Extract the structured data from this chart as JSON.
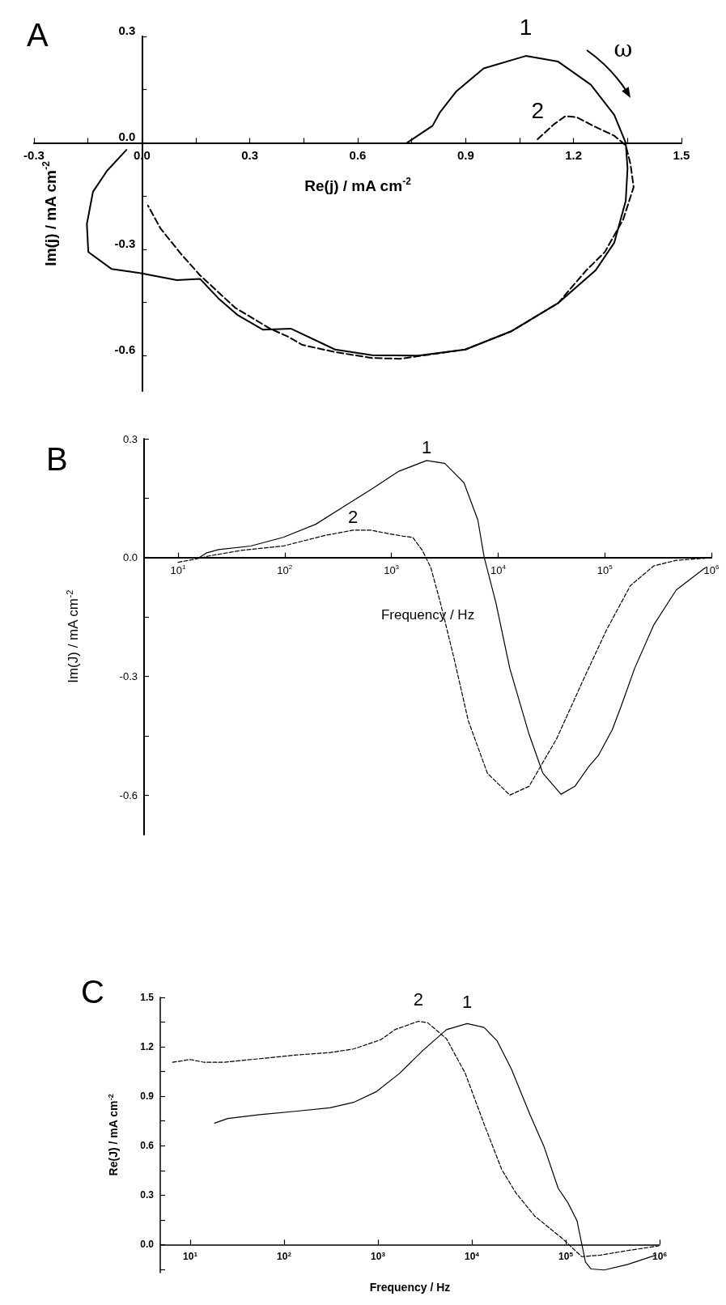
{
  "chart_data": [
    {
      "type": "line",
      "title": "A",
      "xlabel": "Re(j) / mA cm$^{-2}$",
      "ylabel": "Im(j) / mA cm$^{-2}$",
      "xlim": [
        -0.3,
        1.5
      ],
      "ylim": [
        -0.7,
        0.3
      ],
      "xticks": [
        -0.3,
        {
          "value": -0.15,
          "label": null
        },
        {
          "value": 0,
          "label": "0.0"
        },
        {
          "value": 0.15,
          "label": null
        },
        0.3,
        {
          "value": 0.45,
          "label": null
        },
        0.6,
        {
          "value": 0.75,
          "label": null
        },
        0.9,
        {
          "value": 1.05,
          "label": null
        },
        1.2,
        {
          "value": 1.35,
          "label": null
        },
        1.5
      ],
      "yticks": [
        0.3,
        {
          "value": 0.15,
          "label": null
        },
        {
          "value": 0,
          "label": "0.0"
        },
        {
          "value": -0.15,
          "label": null
        },
        -0.3,
        {
          "value": -0.45,
          "label": null
        },
        -0.6
      ],
      "annotations": [
        "ω"
      ],
      "series": [
        {
          "name": "1",
          "color": "#000000",
          "line_style": "solid",
          "x": [
            0.737,
            0.808,
            0.828,
            0.873,
            0.95,
            1.067,
            1.157,
            1.248,
            1.313,
            1.345,
            1.35,
            1.345,
            1.313,
            1.261,
            1.157,
            1.028,
            0.899,
            0.769,
            0.64,
            0.537,
            0.414,
            0.336,
            0.265,
            0.213,
            0.162,
            0.097,
            -0.006,
            -0.084,
            -0.149,
            -0.153,
            -0.136,
            -0.097,
            -0.043
          ],
          "values": [
            0,
            0.048,
            0.085,
            0.144,
            0.21,
            0.245,
            0.229,
            0.164,
            0.079,
            0,
            -0.072,
            -0.164,
            -0.282,
            -0.36,
            -0.452,
            -0.531,
            -0.583,
            -0.6,
            -0.599,
            -0.583,
            -0.524,
            -0.527,
            -0.485,
            -0.439,
            -0.384,
            -0.387,
            -0.367,
            -0.356,
            -0.308,
            -0.229,
            -0.138,
            -0.079,
            -0.02
          ]
        },
        {
          "name": "2",
          "color": "#000000",
          "line_style": "dashed",
          "x": [
            1.1,
            1.145,
            1.177,
            1.209,
            1.254,
            1.313,
            1.345,
            1.358,
            1.367,
            1.338,
            1.287,
            1.235,
            1.157,
            1.028,
            0.899,
            0.718,
            0.64,
            0.537,
            0.446,
            0.407,
            0.356,
            0.259,
            0.162,
            0.11,
            0.052,
            0.017
          ],
          "values": [
            0.01,
            0.052,
            0.075,
            0.072,
            0.048,
            0.02,
            -0.007,
            -0.059,
            -0.125,
            -0.216,
            -0.308,
            -0.36,
            -0.452,
            -0.531,
            -0.583,
            -0.609,
            -0.607,
            -0.59,
            -0.57,
            -0.547,
            -0.524,
            -0.465,
            -0.374,
            -0.315,
            -0.242,
            -0.177
          ]
        }
      ]
    },
    {
      "type": "line",
      "title": "B",
      "xlabel": "Frequency / Hz",
      "ylabel": "Im(J) / mA cm$^{-2}$",
      "log": "x",
      "xlim": [
        4.8,
        1000000
      ],
      "ylim": [
        -0.7,
        0.3
      ],
      "xticks": [
        {
          "value": 10,
          "label": "10$^{1}$"
        },
        {
          "value": 100,
          "label": "10$^{2}$"
        },
        {
          "value": 1000,
          "label": "10$^{3}$"
        },
        {
          "value": 10000,
          "label": "10$^{4}$"
        },
        {
          "value": 100000,
          "label": "10$^{5}$"
        },
        {
          "value": 1000000,
          "label": "10$^{6}$"
        }
      ],
      "yticks": [
        0.3,
        {
          "value": 0.15,
          "label": null
        },
        {
          "value": 0,
          "label": "0.0"
        },
        {
          "value": -0.15,
          "label": null
        },
        -0.3,
        {
          "value": -0.45,
          "label": null
        },
        -0.6
      ],
      "series": [
        {
          "name": "1",
          "color": "#000000",
          "line_style": "solid",
          "x": [
            15.8,
            18.6,
            24,
            47.9,
            96.6,
            195,
            355,
            646,
            1175,
            2138,
            3162,
            4786,
            6457,
            7413,
            9550,
            12880,
            19500,
            26300,
            38900,
            52500,
            70800,
            87100,
            117500,
            141000,
            190500,
            288400,
            467700,
            871000
          ],
          "values": [
            0,
            0.012,
            0.02,
            0.029,
            0.051,
            0.084,
            0.128,
            0.172,
            0.218,
            0.245,
            0.238,
            0.189,
            0.095,
            0,
            -0.115,
            -0.28,
            -0.446,
            -0.545,
            -0.598,
            -0.578,
            -0.528,
            -0.5,
            -0.435,
            -0.379,
            -0.28,
            -0.17,
            -0.082,
            -0.026
          ]
        },
        {
          "name": "2",
          "color": "#000000",
          "line_style": "dashed",
          "x": [
            10,
            14.5,
            19.5,
            38.9,
            96.6,
            240,
            437,
            646,
            955,
            1288,
            1585,
            1950,
            2344,
            2884,
            3890,
            5250,
            7943,
            12880,
            19500,
            35500,
            64600,
            104700,
            173800,
            288400,
            467700,
            955000
          ],
          "values": [
            -0.012,
            -0.004,
            0.004,
            0.018,
            0.029,
            0.056,
            0.069,
            0.069,
            0.06,
            0.054,
            0.051,
            0.018,
            -0.026,
            -0.115,
            -0.258,
            -0.412,
            -0.545,
            -0.6,
            -0.578,
            -0.457,
            -0.302,
            -0.181,
            -0.071,
            -0.021,
            -0.007,
            -0.001
          ]
        }
      ]
    },
    {
      "type": "line",
      "title": "C",
      "xlabel": "Frequency / Hz",
      "ylabel": "Re(J) / mA cm$^{-2}$",
      "log": "x",
      "xlim": [
        4.8,
        1000000
      ],
      "ylim": [
        -0.17,
        1.5
      ],
      "xticks": [
        {
          "value": 10,
          "label": "10$^{1}$"
        },
        {
          "value": 100,
          "label": "10$^{2}$"
        },
        {
          "value": 1000,
          "label": "10$^{3}$"
        },
        {
          "value": 10000,
          "label": "10$^{4}$"
        },
        {
          "value": 100000,
          "label": "10$^{5}$"
        },
        {
          "value": 1000000,
          "label": "10$^{6}$"
        }
      ],
      "yticks": [
        1.5,
        {
          "value": 1.35,
          "label": null
        },
        1.2,
        {
          "value": 1.05,
          "label": null
        },
        0.9,
        {
          "value": 0.75,
          "label": null
        },
        0.6,
        {
          "value": 0.45,
          "label": null
        },
        0.3,
        {
          "value": 0.15,
          "label": null
        },
        {
          "value": 0,
          "label": "0.0"
        },
        {
          "value": -0.15,
          "label": null
        }
      ],
      "series": [
        {
          "name": "1",
          "color": "#000000",
          "line_style": "solid",
          "x": [
            18.2,
            25.1,
            55,
            138,
            309,
            550,
            955,
            1698,
            3020,
            5370,
            8913,
            13490,
            18620,
            26300,
            41690,
            58880,
            83180,
            104700,
            131800,
            147900,
            162200,
            186200,
            257000,
            457100,
            912000
          ],
          "values": [
            0.737,
            0.765,
            0.788,
            0.81,
            0.83,
            0.863,
            0.927,
            1.039,
            1.179,
            1.304,
            1.341,
            1.318,
            1.235,
            1.067,
            0.788,
            0.592,
            0.341,
            0.257,
            0.145,
            0.006,
            -0.106,
            -0.148,
            -0.154,
            -0.12,
            -0.064
          ]
        },
        {
          "name": "2",
          "color": "#000000",
          "line_style": "dashed",
          "x": [
            6.5,
            10,
            14.1,
            22.4,
            55,
            138,
            309,
            550,
            1072,
            1514,
            2692,
            3388,
            5370,
            8511,
            13490,
            20890,
            29510,
            46770,
            93330,
            147900,
            234400,
            457100,
            977200
          ],
          "values": [
            1.106,
            1.123,
            1.106,
            1.106,
            1.128,
            1.151,
            1.165,
            1.187,
            1.243,
            1.304,
            1.355,
            1.346,
            1.249,
            1.039,
            0.732,
            0.453,
            0.313,
            0.173,
            0.034,
            -0.073,
            -0.064,
            -0.036,
            -0.008
          ]
        }
      ]
    }
  ]
}
